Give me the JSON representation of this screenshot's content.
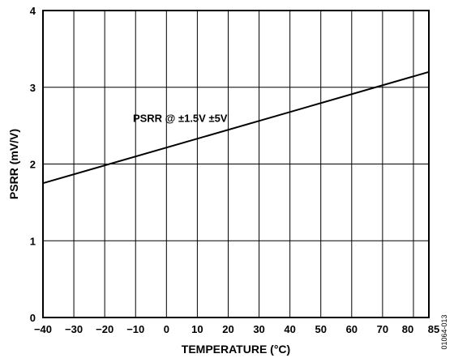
{
  "chart_data": {
    "type": "line",
    "xlabel": "TEMPERATURE (°C)",
    "ylabel": "PSRR (mV/V)",
    "xlim": [
      -40,
      85
    ],
    "ylim": [
      0,
      4
    ],
    "x_ticks": [
      "−40",
      "−30",
      "−20",
      "−10",
      "0",
      "10",
      "20",
      "30",
      "40",
      "50",
      "60",
      "70",
      "80",
      "85"
    ],
    "x_tick_values": [
      -40,
      -30,
      -20,
      -10,
      0,
      10,
      20,
      30,
      40,
      50,
      60,
      70,
      80,
      85
    ],
    "y_ticks": [
      "0",
      "1",
      "2",
      "3",
      "4"
    ],
    "y_tick_values": [
      0,
      1,
      2,
      3,
      4
    ],
    "grid": true,
    "series": [
      {
        "x": [
          -40,
          85
        ],
        "y": [
          1.75,
          3.2
        ]
      }
    ],
    "annotations": [
      {
        "text": "PSRR @ ±1.5V ±5V",
        "x": 0.5,
        "y": 2.6
      }
    ],
    "figure_id": "01064-013"
  }
}
